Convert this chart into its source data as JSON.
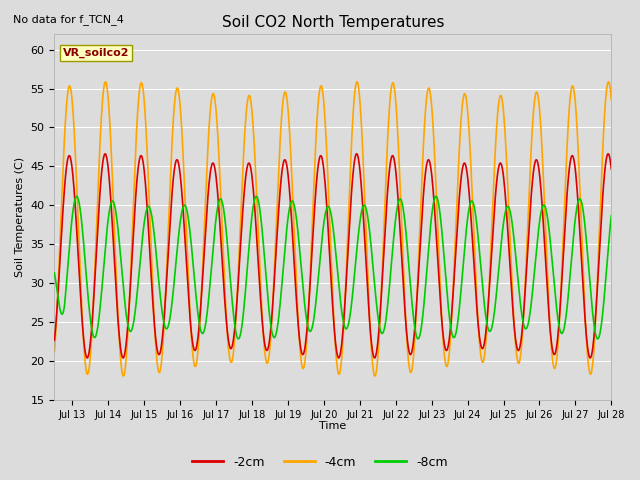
{
  "title": "Soil CO2 North Temperatures",
  "subtitle": "No data for f_TCN_4",
  "ylabel": "Soil Temperatures (C)",
  "xlabel": "Time",
  "ylim": [
    15,
    62
  ],
  "yticks": [
    15,
    20,
    25,
    30,
    35,
    40,
    45,
    50,
    55,
    60
  ],
  "legend_label": "VR_soilco2",
  "series_labels": [
    "-2cm",
    "-4cm",
    "-8cm"
  ],
  "series_colors": [
    "#dd0000",
    "#ffa500",
    "#00cc00"
  ],
  "background_color": "#dcdcdc",
  "plot_bg_color": "#dcdcdc",
  "start_day": 12.5,
  "end_day": 28.0,
  "grid_color": "#ffffff",
  "linewidth": 1.2
}
